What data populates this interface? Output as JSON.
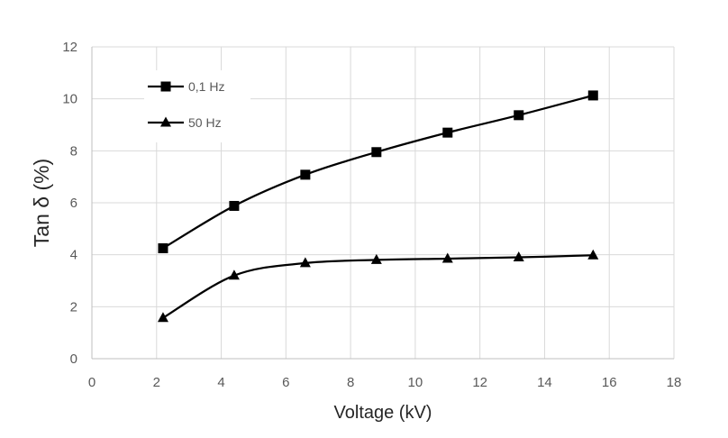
{
  "chart_data": {
    "type": "line",
    "title": "",
    "xlabel": "Voltage (kV)",
    "ylabel": "Tan δ (%)",
    "xlim": [
      0,
      18
    ],
    "ylim": [
      0,
      12
    ],
    "x_ticks": [
      0,
      2,
      4,
      6,
      8,
      10,
      12,
      14,
      16,
      18
    ],
    "y_ticks": [
      0,
      2,
      4,
      6,
      8,
      10,
      12
    ],
    "grid": true,
    "legend_position": "top-left",
    "line_color": "#000000",
    "grid_color": "#d9d9d9",
    "smooth": true,
    "x": [
      2.2,
      4.4,
      6.6,
      8.8,
      11.0,
      13.2,
      15.5
    ],
    "series": [
      {
        "name": "0,1 Hz",
        "marker": "square",
        "values": [
          4.25,
          5.88,
          7.08,
          7.95,
          8.7,
          9.37,
          10.13
        ]
      },
      {
        "name": "50 Hz",
        "marker": "triangle",
        "values": [
          1.57,
          3.2,
          3.68,
          3.8,
          3.85,
          3.9,
          3.98
        ]
      }
    ]
  }
}
